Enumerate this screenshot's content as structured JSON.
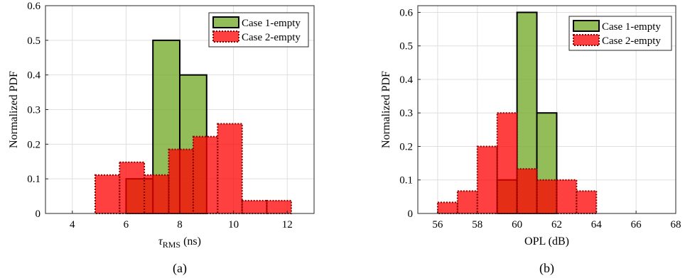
{
  "chart_data": [
    {
      "type": "bar",
      "panel_label": "(a)",
      "xlabel_main": "τ",
      "xlabel_sub": "RMS",
      "xlabel_unit": " (ns)",
      "ylabel": "Normalized PDF",
      "xlim": [
        3,
        13
      ],
      "ylim": [
        0,
        0.6
      ],
      "xticks": [
        4,
        6,
        8,
        10,
        12
      ],
      "yticks": [
        0,
        0.1,
        0.2,
        0.3,
        0.4,
        0.5,
        0.6
      ],
      "grid": true,
      "legend_position": "top-right",
      "series": [
        {
          "name": "Case 1-empty",
          "color": "#77AC30",
          "edge": "solid",
          "bins": [
            [
              6,
              7,
              0.1
            ],
            [
              7,
              8,
              0.5
            ],
            [
              8,
              9,
              0.4
            ]
          ]
        },
        {
          "name": "Case 2-empty",
          "color": "#FF0000",
          "edge": "dotted",
          "bins": [
            [
              4.85,
              5.76,
              0.111
            ],
            [
              5.76,
              6.68,
              0.148
            ],
            [
              6.68,
              7.59,
              0.111
            ],
            [
              7.59,
              8.5,
              0.185
            ],
            [
              8.5,
              9.41,
              0.222
            ],
            [
              9.41,
              10.32,
              0.259
            ],
            [
              10.32,
              11.24,
              0.037
            ],
            [
              11.24,
              12.15,
              0.037
            ]
          ]
        }
      ]
    },
    {
      "type": "bar",
      "panel_label": "(b)",
      "xlabel_main": "OPL (dB)",
      "xlabel_sub": "",
      "xlabel_unit": "",
      "ylabel": "Normalized PDF",
      "xlim": [
        55,
        68
      ],
      "ylim": [
        0,
        0.62
      ],
      "xticks": [
        56,
        58,
        60,
        62,
        64,
        66,
        68
      ],
      "yticks": [
        0,
        0.1,
        0.2,
        0.3,
        0.4,
        0.5,
        0.6
      ],
      "grid": true,
      "legend_position": "top-right",
      "series": [
        {
          "name": "Case 1-empty",
          "color": "#77AC30",
          "edge": "solid",
          "bins": [
            [
              59,
              60,
              0.1
            ],
            [
              60,
              61,
              0.6
            ],
            [
              61,
              62,
              0.3
            ]
          ]
        },
        {
          "name": "Case 2-empty",
          "color": "#FF0000",
          "edge": "dotted",
          "bins": [
            [
              56,
              57,
              0.033
            ],
            [
              57,
              58,
              0.067
            ],
            [
              58,
              59,
              0.2
            ],
            [
              59,
              60,
              0.3
            ],
            [
              60,
              61,
              0.133
            ],
            [
              61,
              62,
              0.1
            ],
            [
              62,
              63,
              0.1
            ],
            [
              63,
              64,
              0.067
            ]
          ]
        }
      ]
    }
  ]
}
